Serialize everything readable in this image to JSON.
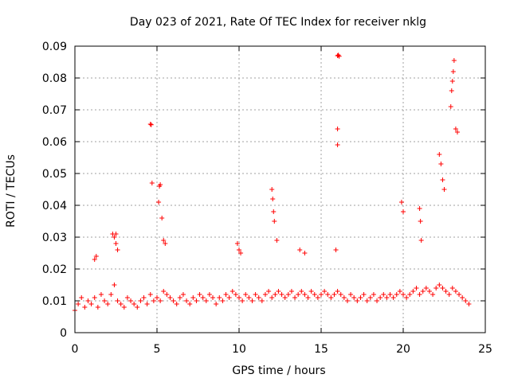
{
  "chart_data": {
    "type": "scatter",
    "title": "Day 023 of 2021, Rate Of TEC Index for receiver nklg",
    "xlabel": "GPS time / hours",
    "ylabel": "ROTI / TECUs",
    "xlim": [
      0,
      25
    ],
    "ylim": [
      0,
      0.09
    ],
    "xticks": [
      "0",
      "5",
      "10",
      "15",
      "20",
      "25"
    ],
    "yticks": [
      "0",
      "0.01",
      "0.02",
      "0.03",
      "0.04",
      "0.05",
      "0.06",
      "0.07",
      "0.08",
      "0.09"
    ],
    "grid": true,
    "marker": "+",
    "color": "#ff0000",
    "series": [
      {
        "x": [
          0.0,
          0.2,
          0.4,
          0.6,
          0.8,
          1.0,
          1.2,
          1.4,
          1.6,
          1.8,
          2.0,
          2.2,
          2.4,
          2.6,
          2.8,
          3.0,
          3.2,
          3.4,
          3.6,
          3.8,
          4.0,
          4.2,
          4.4,
          4.6,
          4.8,
          5.0,
          5.2,
          5.4,
          5.6,
          5.8,
          6.0,
          6.2,
          6.4,
          6.6,
          6.8,
          7.0,
          7.2,
          7.4,
          7.6,
          7.8,
          8.0,
          8.2,
          8.4,
          8.6,
          8.8,
          9.0,
          9.2,
          9.4,
          9.6,
          9.8,
          10.0,
          10.2,
          10.4,
          10.6,
          10.8,
          11.0,
          11.2,
          11.4,
          11.6,
          11.8,
          12.0,
          12.2,
          12.4,
          12.6,
          12.8,
          13.0,
          13.2,
          13.4,
          13.6,
          13.8,
          14.0,
          14.2,
          14.4,
          14.6,
          14.8,
          15.0,
          15.2,
          15.4,
          15.6,
          15.8,
          16.0,
          16.2,
          16.4,
          16.6,
          16.8,
          17.0,
          17.2,
          17.4,
          17.6,
          17.8,
          18.0,
          18.2,
          18.4,
          18.6,
          18.8,
          19.0,
          19.2,
          19.4,
          19.6,
          19.8,
          20.0,
          20.2,
          20.4,
          20.6,
          20.8,
          21.0,
          21.2,
          21.4,
          21.6,
          21.8,
          22.0,
          22.2,
          22.4,
          22.6,
          22.8,
          23.0,
          23.2,
          23.4,
          23.6,
          23.8,
          24.0,
          2.3,
          2.4,
          2.5,
          2.6,
          2.5,
          4.6,
          4.65,
          4.7,
          5.1,
          5.15,
          5.2,
          5.3,
          5.4,
          5.5,
          12.0,
          12.05,
          12.1,
          12.15,
          12.3,
          15.9,
          16.0,
          16.05,
          16.1,
          16.0,
          16.0,
          19.9,
          20.0,
          21.0,
          21.05,
          21.1,
          22.2,
          22.3,
          22.4,
          22.5,
          22.9,
          22.95,
          23.0,
          23.05,
          23.1,
          23.2,
          23.3,
          1.2,
          1.3,
          9.9,
          10.0,
          10.1,
          13.7,
          14.0
        ],
        "y": [
          0.007,
          0.009,
          0.011,
          0.008,
          0.01,
          0.009,
          0.011,
          0.008,
          0.012,
          0.01,
          0.009,
          0.012,
          0.015,
          0.01,
          0.009,
          0.008,
          0.011,
          0.01,
          0.009,
          0.008,
          0.01,
          0.011,
          0.009,
          0.012,
          0.01,
          0.011,
          0.01,
          0.013,
          0.012,
          0.011,
          0.01,
          0.009,
          0.011,
          0.012,
          0.01,
          0.009,
          0.011,
          0.01,
          0.012,
          0.011,
          0.01,
          0.012,
          0.011,
          0.009,
          0.011,
          0.01,
          0.012,
          0.011,
          0.013,
          0.012,
          0.011,
          0.01,
          0.012,
          0.011,
          0.01,
          0.012,
          0.011,
          0.01,
          0.012,
          0.013,
          0.011,
          0.012,
          0.013,
          0.012,
          0.011,
          0.012,
          0.013,
          0.011,
          0.012,
          0.013,
          0.012,
          0.011,
          0.013,
          0.012,
          0.011,
          0.012,
          0.013,
          0.012,
          0.011,
          0.012,
          0.013,
          0.012,
          0.011,
          0.01,
          0.012,
          0.011,
          0.01,
          0.011,
          0.012,
          0.01,
          0.011,
          0.012,
          0.01,
          0.011,
          0.012,
          0.011,
          0.012,
          0.011,
          0.012,
          0.013,
          0.012,
          0.011,
          0.012,
          0.013,
          0.014,
          0.012,
          0.013,
          0.014,
          0.013,
          0.012,
          0.014,
          0.015,
          0.014,
          0.013,
          0.012,
          0.014,
          0.013,
          0.012,
          0.011,
          0.01,
          0.009,
          0.031,
          0.03,
          0.028,
          0.026,
          0.031,
          0.0655,
          0.0653,
          0.047,
          0.041,
          0.046,
          0.0465,
          0.036,
          0.029,
          0.028,
          0.045,
          0.042,
          0.038,
          0.035,
          0.029,
          0.026,
          0.087,
          0.0872,
          0.0868,
          0.064,
          0.059,
          0.041,
          0.038,
          0.039,
          0.035,
          0.029,
          0.056,
          0.053,
          0.048,
          0.045,
          0.071,
          0.076,
          0.079,
          0.082,
          0.0855,
          0.064,
          0.063,
          0.023,
          0.024,
          0.028,
          0.026,
          0.025,
          0.026,
          0.025
        ]
      }
    ]
  }
}
